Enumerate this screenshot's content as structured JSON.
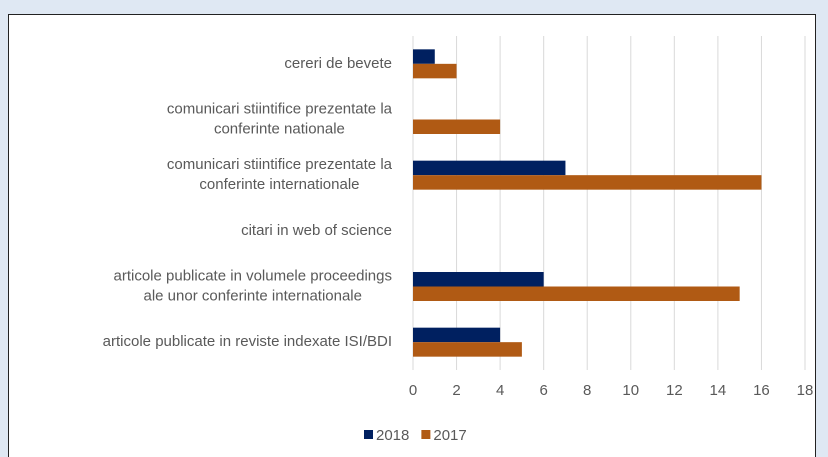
{
  "chart_data": {
    "type": "hbar",
    "categories": [
      [
        "cereri de bevete"
      ],
      [
        "comunicari stiintifice prezentate la",
        "conferinte nationale"
      ],
      [
        "comunicari stiintifice prezentate la",
        "conferinte internationale"
      ],
      [
        "citari in web of science"
      ],
      [
        "articole publicate in volumele proceedings",
        "ale unor conferinte internationale"
      ],
      [
        "articole publicate in reviste indexate ISI/BDI"
      ]
    ],
    "series": [
      {
        "name": "2018",
        "color": "#002060",
        "values": [
          1,
          0,
          7,
          0,
          6,
          4
        ]
      },
      {
        "name": "2017",
        "color": "#b05a14",
        "values": [
          2,
          4,
          16,
          0,
          15,
          5
        ]
      }
    ],
    "xlim": [
      0,
      18
    ],
    "xticks": [
      0,
      2,
      4,
      6,
      8,
      10,
      12,
      14,
      16,
      18
    ],
    "grid": true,
    "legend": "bottom"
  }
}
